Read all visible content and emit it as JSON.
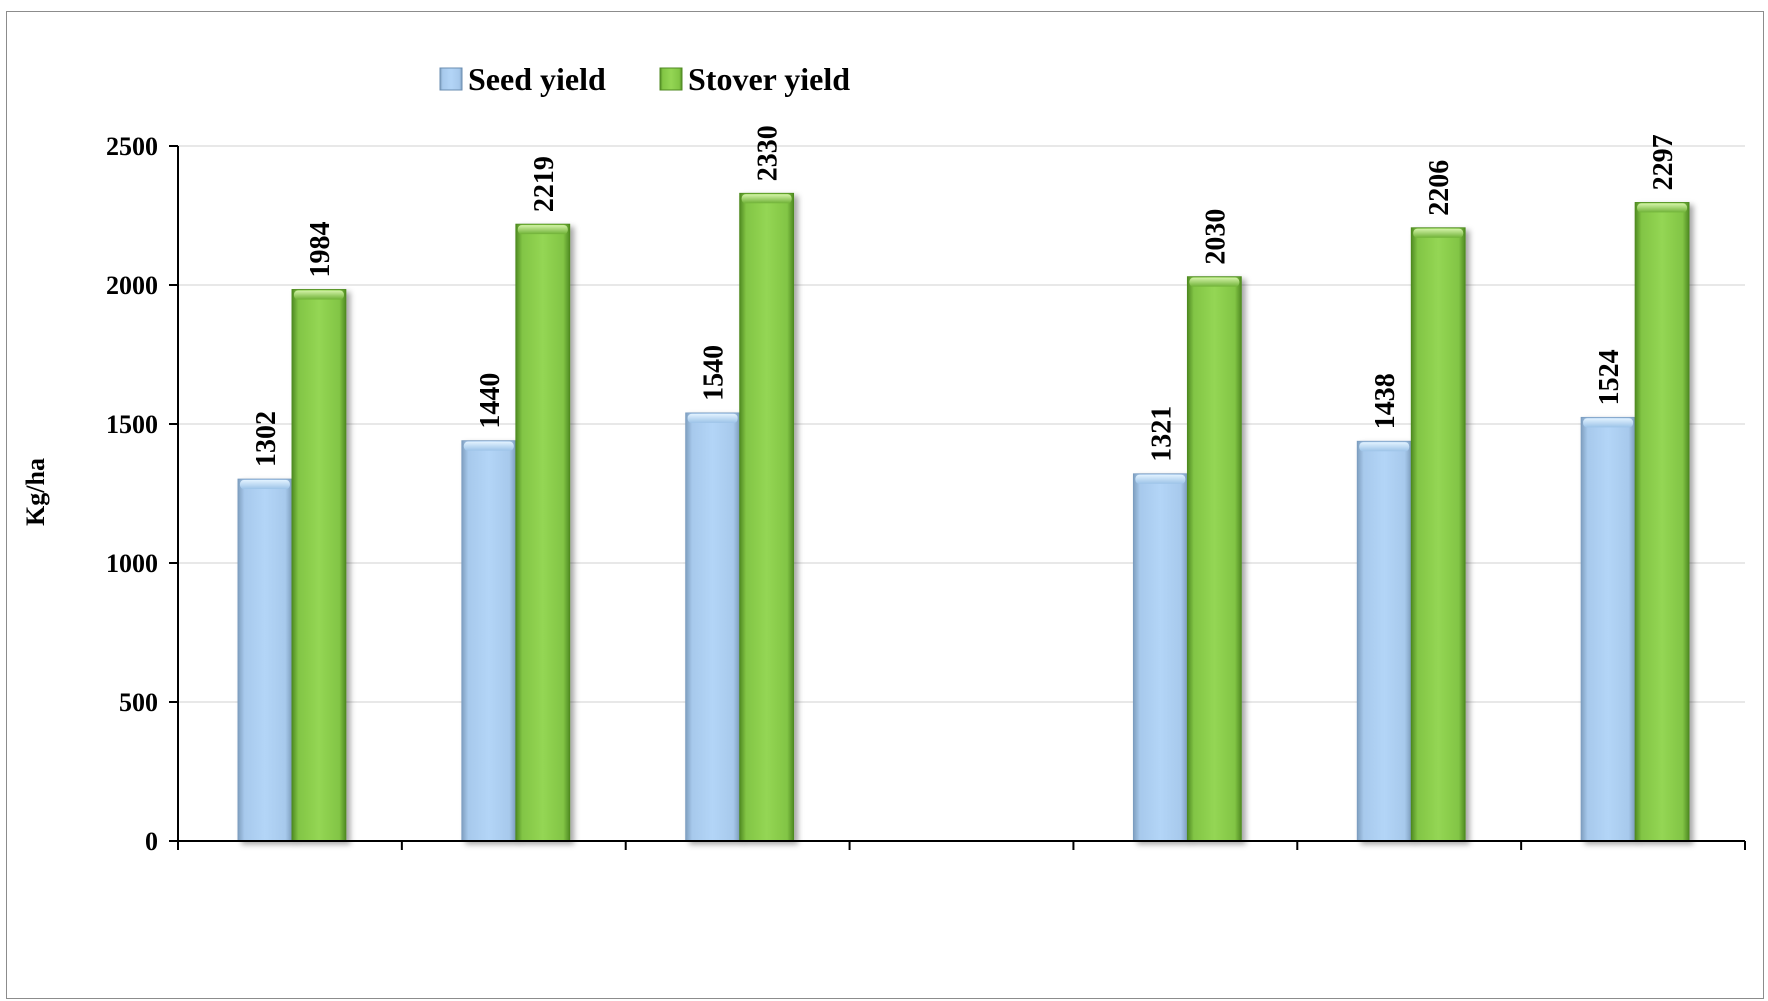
{
  "chart_data": {
    "type": "bar",
    "categories": [
      "",
      "",
      "",
      "",
      "",
      "",
      ""
    ],
    "series": [
      {
        "name": "Seed yield",
        "color": "#a9cdf2",
        "values": [
          1302,
          1440,
          1540,
          null,
          1321,
          1438,
          1524
        ]
      },
      {
        "name": "Stover yield",
        "color": "#8bd04a",
        "values": [
          1984,
          2219,
          2330,
          null,
          2030,
          2206,
          2297
        ]
      }
    ],
    "ylabel": "Kg/ha",
    "xlabel": "",
    "ylim": [
      0,
      2500
    ],
    "yticks": [
      0,
      500,
      1000,
      1500,
      2000,
      2500
    ],
    "grid": true,
    "legend": "top-left",
    "data_labels": true
  }
}
